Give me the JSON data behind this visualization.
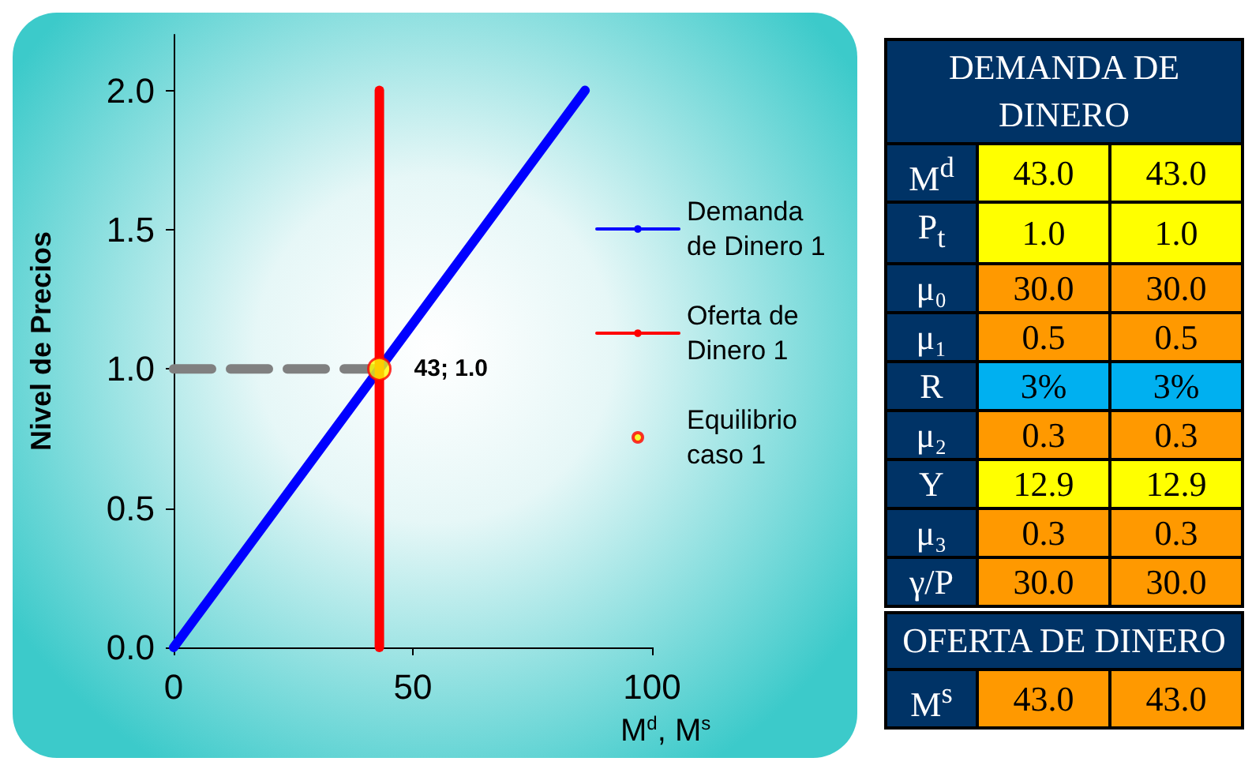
{
  "chart_data": [
    {
      "type": "line",
      "xlabel": "M$^{d}$, M$^{s}$",
      "ylabel": "Nivel de Precios",
      "xlim": [
        0,
        100
      ],
      "ylim": [
        0,
        2.2
      ],
      "xticks": [
        0,
        50,
        100
      ],
      "yticks": [
        {
          "value": 0,
          "label": "0.0"
        },
        {
          "value": 0.5,
          "label": "0.5"
        },
        {
          "value": 1,
          "label": "1.0"
        },
        {
          "value": 1.5,
          "label": "1.5"
        },
        {
          "value": 2,
          "label": "2.0"
        }
      ],
      "grid": false,
      "legend": "right",
      "series": [
        {
          "type": "line",
          "x": [
            0,
            43
          ],
          "values": [
            1,
            1
          ],
          "color": "#808080",
          "line_style": "dashed",
          "marker": "none"
        },
        {
          "type": "line",
          "name": "Demanda de Dinero 1",
          "x": [
            0,
            86
          ],
          "values": [
            0,
            2
          ],
          "color": "#0000ff",
          "line_style": "solid",
          "marker": "none"
        },
        {
          "type": "line",
          "name": "Oferta de Dinero 1",
          "x": [
            43,
            43
          ],
          "values": [
            0,
            2
          ],
          "color": "#ff0000",
          "line_style": "solid",
          "marker": "none"
        },
        {
          "type": "scatter",
          "name": "Equilibrio caso 1",
          "x": [
            43
          ],
          "values": [
            1
          ],
          "color": "#ffff00",
          "marker": "circle"
        }
      ],
      "annotations": [
        {
          "text": "43; 1.0",
          "x": 43,
          "y": 1
        }
      ]
    },
    {
      "type": "other",
      "title": "DEMANDA DE DINERO",
      "y_categories": [
        "M$^{d}$",
        "P$_{t}$",
        "μ₀",
        "μ₁",
        "R",
        "μ₂",
        "Y",
        "μ₃",
        "γ/P"
      ],
      "cell_labels": [
        [
          "43.0",
          "43.0"
        ],
        [
          "1.0",
          "1.0"
        ],
        [
          "30.0",
          "30.0"
        ],
        [
          "0.5",
          "0.5"
        ],
        [
          "3%",
          "3%"
        ],
        [
          "0.3",
          "0.3"
        ],
        [
          "12.9",
          "12.9"
        ],
        [
          "0.3",
          "0.3"
        ],
        [
          "30.0",
          "30.0"
        ]
      ],
      "colors": [
        "#ffff00",
        "#ffff00",
        "#ff9900",
        "#ff9900",
        "#00b0f0",
        "#ff9900",
        "#ffff00",
        "#ff9900",
        "#ff9900"
      ]
    },
    {
      "type": "other",
      "title": "OFERTA DE DINERO",
      "y_categories": [
        "M$^{s}$"
      ],
      "cell_labels": [
        [
          "43.0",
          "43.0"
        ]
      ],
      "colors": [
        "#ff9900"
      ]
    }
  ]
}
